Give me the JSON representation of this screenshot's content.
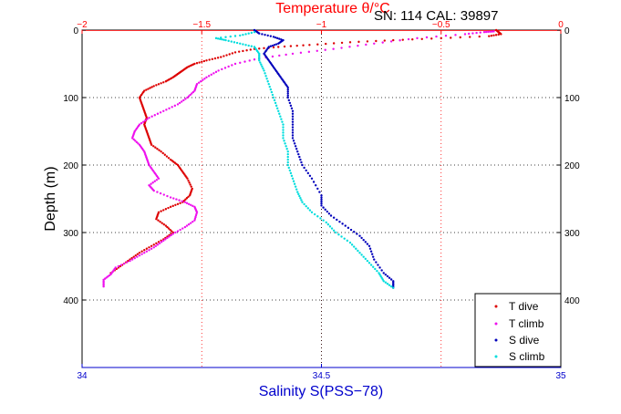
{
  "header": {
    "temp_title": "Temperature θ/°C",
    "sn_cal": "SN: 114  CAL: 39897"
  },
  "colors": {
    "temp_axis": "#ff0000",
    "sal_axis": "#0000cc",
    "t_dive": "#dd0000",
    "t_climb": "#ee11ee",
    "s_dive": "#0000bb",
    "s_climb": "#00dddd"
  },
  "chart_data": {
    "type": "scatter",
    "title": "Temperature θ/°C",
    "ylabel": "Depth (m)",
    "xlabel": "Salinity S(PSS−78)",
    "ylim": [
      0,
      500
    ],
    "y_reversed": true,
    "y_ticks": [
      0,
      100,
      200,
      300,
      400
    ],
    "x_top": {
      "label": "Temperature θ/°C",
      "lim": [
        -2,
        0
      ],
      "ticks": [
        -2,
        -1.5,
        -1,
        -0.5,
        0
      ],
      "tick_labels": [
        "−2",
        "−1.5",
        "−1",
        "−0.5",
        "0"
      ]
    },
    "x_bottom": {
      "label": "Salinity S(PSS−78)",
      "lim": [
        34,
        35
      ],
      "ticks": [
        34,
        34.5,
        35
      ],
      "tick_labels": [
        "34",
        "34.5",
        "35"
      ]
    },
    "grid": "dotted",
    "legend_position": "bottom-right",
    "legend": [
      "T dive",
      "T climb",
      "S dive",
      "S climb"
    ],
    "series": [
      {
        "name": "T dive",
        "axis": "temperature",
        "points": [
          [
            -0.27,
            0
          ],
          [
            -0.26,
            3
          ],
          [
            -0.25,
            6
          ],
          [
            -0.3,
            9
          ],
          [
            -0.5,
            12
          ],
          [
            -0.7,
            15
          ],
          [
            -0.88,
            18
          ],
          [
            -1.05,
            22
          ],
          [
            -1.18,
            25
          ],
          [
            -1.28,
            28
          ],
          [
            -1.36,
            33
          ],
          [
            -1.42,
            40
          ],
          [
            -1.48,
            45
          ],
          [
            -1.53,
            50
          ],
          [
            -1.56,
            55
          ],
          [
            -1.58,
            60
          ],
          [
            -1.6,
            65
          ],
          [
            -1.62,
            70
          ],
          [
            -1.65,
            76
          ],
          [
            -1.7,
            83
          ],
          [
            -1.74,
            90
          ],
          [
            -1.76,
            100
          ],
          [
            -1.75,
            110
          ],
          [
            -1.74,
            120
          ],
          [
            -1.73,
            130
          ],
          [
            -1.74,
            140
          ],
          [
            -1.73,
            150
          ],
          [
            -1.72,
            160
          ],
          [
            -1.71,
            170
          ],
          [
            -1.67,
            180
          ],
          [
            -1.63,
            192
          ],
          [
            -1.6,
            200
          ],
          [
            -1.58,
            210
          ],
          [
            -1.56,
            220
          ],
          [
            -1.54,
            235
          ],
          [
            -1.55,
            245
          ],
          [
            -1.58,
            255
          ],
          [
            -1.63,
            262
          ],
          [
            -1.68,
            270
          ],
          [
            -1.69,
            280
          ],
          [
            -1.65,
            290
          ],
          [
            -1.62,
            300
          ],
          [
            -1.66,
            310
          ],
          [
            -1.71,
            320
          ],
          [
            -1.76,
            330
          ],
          [
            -1.8,
            340
          ],
          [
            -1.84,
            350
          ],
          [
            -1.88,
            360
          ]
        ]
      },
      {
        "name": "T climb",
        "axis": "temperature",
        "points": [
          [
            -1.91,
            380
          ],
          [
            -1.91,
            370
          ],
          [
            -1.88,
            362
          ],
          [
            -1.86,
            352
          ],
          [
            -1.8,
            342
          ],
          [
            -1.75,
            332
          ],
          [
            -1.7,
            322
          ],
          [
            -1.66,
            312
          ],
          [
            -1.62,
            302
          ],
          [
            -1.57,
            292
          ],
          [
            -1.53,
            282
          ],
          [
            -1.52,
            270
          ],
          [
            -1.53,
            262
          ],
          [
            -1.57,
            255
          ],
          [
            -1.63,
            248
          ],
          [
            -1.7,
            238
          ],
          [
            -1.72,
            230
          ],
          [
            -1.68,
            220
          ],
          [
            -1.7,
            210
          ],
          [
            -1.72,
            200
          ],
          [
            -1.73,
            190
          ],
          [
            -1.74,
            180
          ],
          [
            -1.76,
            170
          ],
          [
            -1.79,
            160
          ],
          [
            -1.78,
            150
          ],
          [
            -1.76,
            140
          ],
          [
            -1.72,
            130
          ],
          [
            -1.66,
            120
          ],
          [
            -1.6,
            110
          ],
          [
            -1.56,
            100
          ],
          [
            -1.53,
            90
          ],
          [
            -1.52,
            80
          ],
          [
            -1.48,
            70
          ],
          [
            -1.43,
            60
          ],
          [
            -1.36,
            50
          ],
          [
            -1.26,
            42
          ],
          [
            -1.12,
            35
          ],
          [
            -0.95,
            28
          ],
          [
            -0.78,
            20
          ],
          [
            -0.6,
            12
          ],
          [
            -0.4,
            6
          ],
          [
            -0.32,
            3
          ],
          [
            -0.28,
            2
          ]
        ]
      },
      {
        "name": "S dive",
        "axis": "salinity",
        "points": [
          [
            34.36,
            0
          ],
          [
            34.37,
            5
          ],
          [
            34.4,
            10
          ],
          [
            34.42,
            15
          ],
          [
            34.41,
            20
          ],
          [
            34.39,
            25
          ],
          [
            34.38,
            35
          ],
          [
            34.39,
            45
          ],
          [
            34.4,
            55
          ],
          [
            34.41,
            65
          ],
          [
            34.42,
            75
          ],
          [
            34.43,
            85
          ],
          [
            34.43,
            100
          ],
          [
            34.44,
            120
          ],
          [
            34.44,
            140
          ],
          [
            34.44,
            160
          ],
          [
            34.45,
            180
          ],
          [
            34.46,
            200
          ],
          [
            34.48,
            220
          ],
          [
            34.5,
            245
          ],
          [
            34.5,
            260
          ],
          [
            34.52,
            275
          ],
          [
            34.55,
            290
          ],
          [
            34.58,
            305
          ],
          [
            34.6,
            320
          ],
          [
            34.61,
            340
          ],
          [
            34.63,
            360
          ],
          [
            34.65,
            372
          ],
          [
            34.65,
            382
          ]
        ]
      },
      {
        "name": "S climb",
        "axis": "salinity",
        "points": [
          [
            34.65,
            382
          ],
          [
            34.63,
            372
          ],
          [
            34.62,
            360
          ],
          [
            34.6,
            345
          ],
          [
            34.58,
            330
          ],
          [
            34.56,
            315
          ],
          [
            34.53,
            300
          ],
          [
            34.51,
            285
          ],
          [
            34.48,
            270
          ],
          [
            34.46,
            255
          ],
          [
            34.45,
            240
          ],
          [
            34.44,
            220
          ],
          [
            34.43,
            200
          ],
          [
            34.43,
            180
          ],
          [
            34.42,
            160
          ],
          [
            34.42,
            140
          ],
          [
            34.41,
            120
          ],
          [
            34.4,
            100
          ],
          [
            34.39,
            80
          ],
          [
            34.38,
            60
          ],
          [
            34.37,
            45
          ],
          [
            34.37,
            35
          ],
          [
            34.36,
            25
          ],
          [
            34.33,
            20
          ],
          [
            34.3,
            15
          ],
          [
            34.28,
            12
          ],
          [
            34.33,
            8
          ],
          [
            34.36,
            3
          ]
        ]
      }
    ]
  }
}
